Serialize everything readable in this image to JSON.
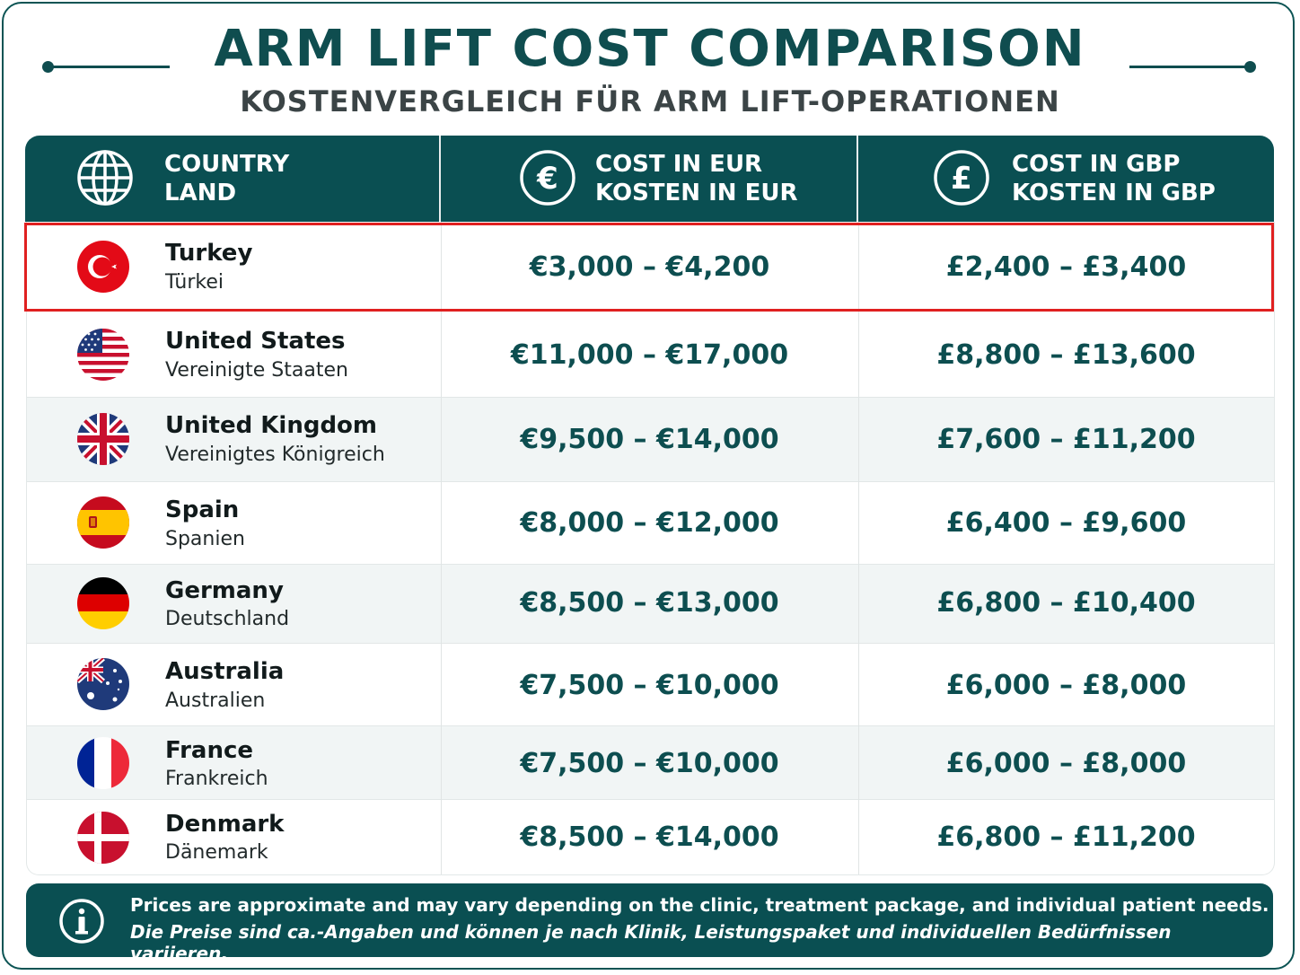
{
  "title": "ARM LIFT COST COMPARISON",
  "subtitle": "KOSTENVERGLEICH FÜR ARM LIFT-OPERATIONEN",
  "colors": {
    "header_bg": "#0a4f52",
    "accent_text": "#0d4e50",
    "highlight_border": "#e02020",
    "alt_row": "#f1f5f5"
  },
  "header": {
    "country": {
      "line1": "COUNTRY",
      "line2": "LAND",
      "icon": "globe-icon"
    },
    "eur": {
      "line1": "COST IN EUR",
      "line2": "KOSTEN IN EUR",
      "icon": "euro-icon"
    },
    "gbp": {
      "line1": "COST IN GBP",
      "line2": "KOSTEN IN GBP",
      "icon": "pound-icon"
    }
  },
  "rows": [
    {
      "name": "Turkey",
      "name_de": "Türkei",
      "eur": "€3,000 – €4,200",
      "gbp": "£2,400 – £3,400",
      "flag": "turkey-flag-icon",
      "highlighted": true
    },
    {
      "name": "United States",
      "name_de": "Vereinigte Staaten",
      "eur": "€11,000 – €17,000",
      "gbp": "£8,800 – £13,600",
      "flag": "usa-flag-icon"
    },
    {
      "name": "United Kingdom",
      "name_de": "Vereinigtes Königreich",
      "eur": "€9,500 – €14,000",
      "gbp": "£7,600 – £11,200",
      "flag": "uk-flag-icon"
    },
    {
      "name": "Spain",
      "name_de": "Spanien",
      "eur": "€8,000 – €12,000",
      "gbp": "£6,400 – £9,600",
      "flag": "spain-flag-icon"
    },
    {
      "name": "Germany",
      "name_de": "Deutschland",
      "eur": "€8,500 – €13,000",
      "gbp": "£6,800 – £10,400",
      "flag": "germany-flag-icon"
    },
    {
      "name": "Australia",
      "name_de": "Australien",
      "eur": "€7,500 – €10,000",
      "gbp": "£6,000 – £8,000",
      "flag": "australia-flag-icon"
    },
    {
      "name": "France",
      "name_de": "Frankreich",
      "eur": "€7,500 – €10,000",
      "gbp": "£6,000 – £8,000",
      "flag": "france-flag-icon"
    },
    {
      "name": "Denmark",
      "name_de": "Dänemark",
      "eur": "€8,500 – €14,000",
      "gbp": "£6,800 – £11,200",
      "flag": "denmark-flag-icon"
    }
  ],
  "footer": {
    "icon": "info-icon",
    "note_en": "Prices are approximate and may vary depending on the clinic, treatment package, and individual patient needs.",
    "note_de": "Die Preise sind ca.-Angaben und können je nach Klinik, Leistungspaket und individuellen Bedürfnissen variieren."
  }
}
